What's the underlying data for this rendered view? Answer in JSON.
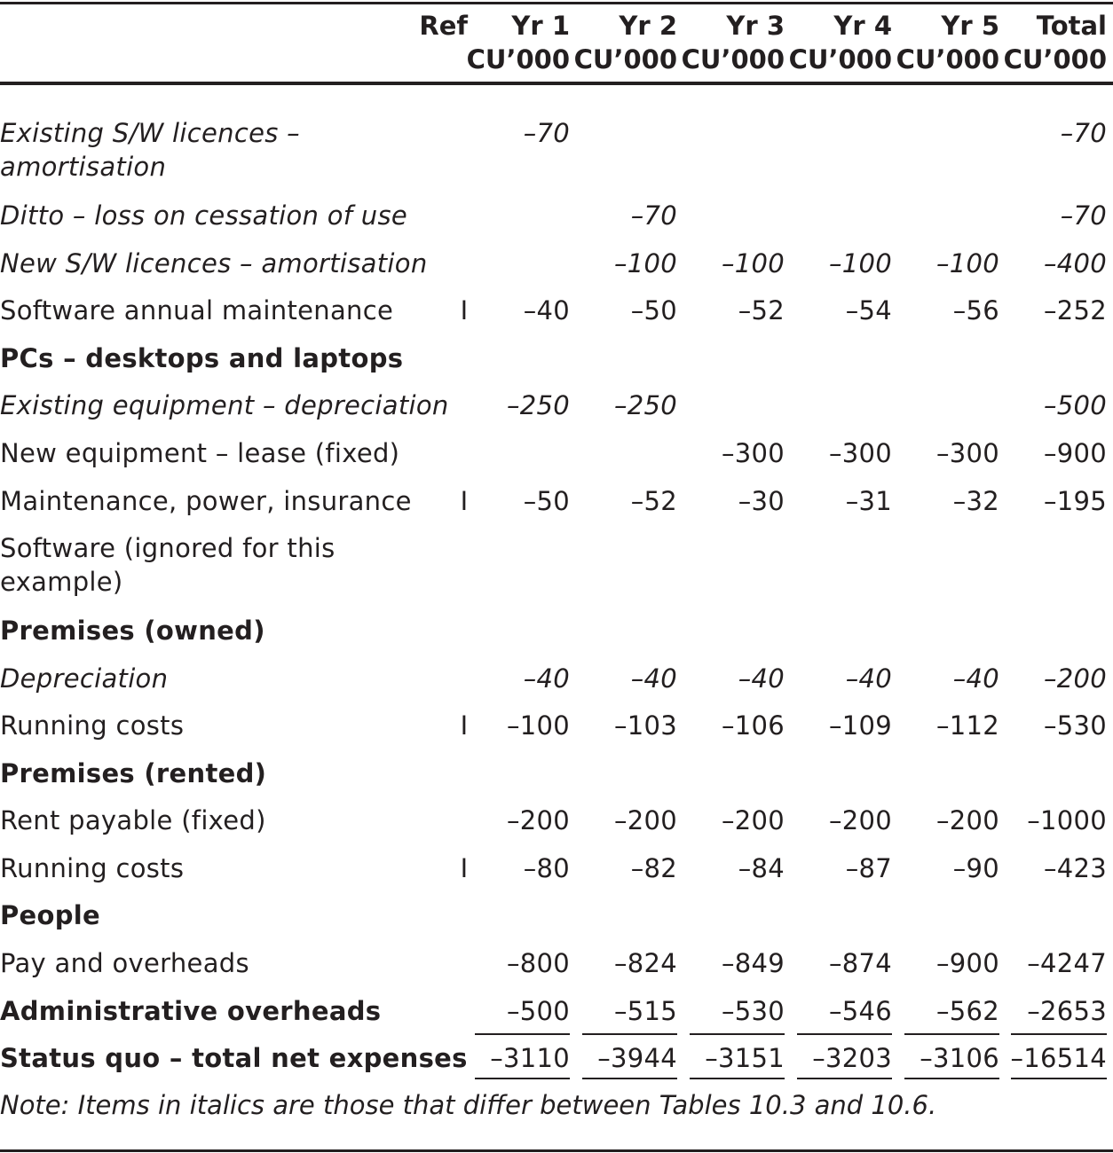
{
  "header": {
    "ref": "Ref",
    "cols": [
      {
        "l1": "Yr 1",
        "l2": "CU’000"
      },
      {
        "l1": "Yr 2",
        "l2": "CU’000"
      },
      {
        "l1": "Yr 3",
        "l2": "CU’000"
      },
      {
        "l1": "Yr 4",
        "l2": "CU’000"
      },
      {
        "l1": "Yr 5",
        "l2": "CU’000"
      },
      {
        "l1": "Total",
        "l2": "CU’000"
      }
    ]
  },
  "rows": [
    {
      "label": "Existing S/W licences – amortisation",
      "style": "italic",
      "ref": "",
      "values": [
        "–70",
        "",
        "",
        "",
        "",
        "–70"
      ]
    },
    {
      "label": "Ditto – loss on cessation of use",
      "style": "italic",
      "ref": "",
      "values": [
        "",
        "–70",
        "",
        "",
        "",
        "–70"
      ]
    },
    {
      "label": "New S/W licences – amortisation",
      "style": "italic",
      "ref": "",
      "values": [
        "",
        "–100",
        "–100",
        "–100",
        "–100",
        "–400"
      ]
    },
    {
      "label": "Software annual maintenance",
      "style": "normal",
      "ref": "I",
      "values": [
        "–40",
        "–50",
        "–52",
        "–54",
        "–56",
        "–252"
      ]
    },
    {
      "label": "PCs – desktops and laptops",
      "style": "bold",
      "ref": "",
      "values": [
        "",
        "",
        "",
        "",
        "",
        ""
      ]
    },
    {
      "label": "Existing equipment – depreciation",
      "style": "italic",
      "ref": "",
      "values": [
        "–250",
        "–250",
        "",
        "",
        "",
        "–500"
      ]
    },
    {
      "label": "New equipment – lease (fixed)",
      "style": "normal",
      "ref": "",
      "values": [
        "",
        "",
        "–300",
        "–300",
        "–300",
        "–900"
      ]
    },
    {
      "label": "Maintenance, power, insurance",
      "style": "normal",
      "ref": "I",
      "values": [
        "–50",
        "–52",
        "–30",
        "–31",
        "–32",
        "–195"
      ]
    },
    {
      "label": "Software (ignored for this example)",
      "style": "normal",
      "ref": "",
      "values": [
        "",
        "",
        "",
        "",
        "",
        ""
      ]
    },
    {
      "label": "Premises (owned)",
      "style": "bold",
      "ref": "",
      "values": [
        "",
        "",
        "",
        "",
        "",
        ""
      ]
    },
    {
      "label": "Depreciation",
      "style": "italic",
      "ref": "",
      "values": [
        "–40",
        "–40",
        "–40",
        "–40",
        "–40",
        "–200"
      ]
    },
    {
      "label": "Running costs",
      "style": "normal",
      "ref": "I",
      "values": [
        "–100",
        "–103",
        "–106",
        "–109",
        "–112",
        "–530"
      ]
    },
    {
      "label": "Premises (rented)",
      "style": "bold",
      "ref": "",
      "values": [
        "",
        "",
        "",
        "",
        "",
        ""
      ]
    },
    {
      "label": "Rent payable (fixed)",
      "style": "normal",
      "ref": "",
      "values": [
        "–200",
        "–200",
        "–200",
        "–200",
        "–200",
        "–1000"
      ]
    },
    {
      "label": "Running costs",
      "style": "normal",
      "ref": "I",
      "values": [
        "–80",
        "–82",
        "–84",
        "–87",
        "–90",
        "–423"
      ]
    },
    {
      "label": "People",
      "style": "bold",
      "ref": "",
      "values": [
        "",
        "",
        "",
        "",
        "",
        ""
      ]
    },
    {
      "label": "Pay and overheads",
      "style": "normal",
      "ref": "",
      "values": [
        "–800",
        "–824",
        "–849",
        "–874",
        "–900",
        "–4247"
      ]
    },
    {
      "label": "Administrative overheads",
      "style": "bold-label",
      "ref": "",
      "values": [
        "–500",
        "–515",
        "–530",
        "–546",
        "–562",
        "–2653"
      ]
    },
    {
      "label": "Status quo – total net expenses",
      "style": "bold-label",
      "ref": "",
      "values": [
        "–3110",
        "–3944",
        "–3151",
        "–3203",
        "–3106",
        "–16514"
      ]
    }
  ],
  "note": "Note: Items in italics are those that differ between Tables 10.3 and 10.6."
}
